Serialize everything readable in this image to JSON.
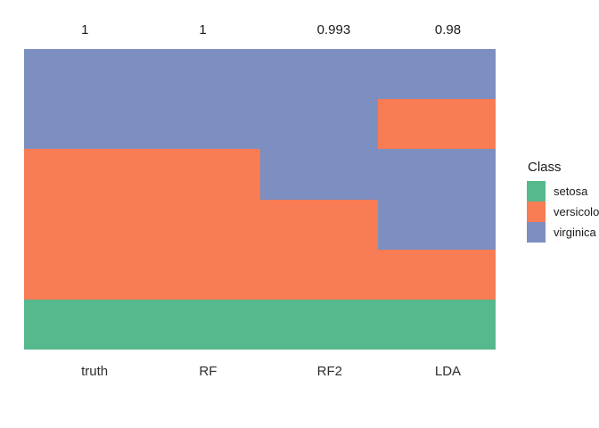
{
  "chart_data": {
    "type": "heatmap",
    "title": "",
    "description": "Predicted class per sample block (6 equal vertical blocks, top to bottom) for ground truth and three classifiers on the iris classes",
    "top_labels": [
      "1",
      "1",
      "0.993",
      "0.98"
    ],
    "x_tick_labels": [
      "truth",
      "RF",
      "RF2",
      "LDA"
    ],
    "columns": [
      {
        "name": "truth",
        "score_label": "1",
        "blocks_top_to_bottom": [
          "virginica",
          "virginica",
          "versicolor",
          "versicolor",
          "versicolor",
          "setosa"
        ]
      },
      {
        "name": "RF",
        "score_label": "1",
        "blocks_top_to_bottom": [
          "virginica",
          "virginica",
          "versicolor",
          "versicolor",
          "versicolor",
          "setosa"
        ]
      },
      {
        "name": "RF2",
        "score_label": "0.993",
        "blocks_top_to_bottom": [
          "virginica",
          "virginica",
          "virginica",
          "versicolor",
          "versicolor",
          "setosa"
        ]
      },
      {
        "name": "LDA",
        "score_label": "0.98",
        "blocks_top_to_bottom": [
          "virginica",
          "versicolor",
          "virginica",
          "virginica",
          "versicolor",
          "setosa"
        ]
      }
    ],
    "block_height_fraction": 0.1667,
    "class_colors": {
      "setosa": "#56B88D",
      "versicolor": "#F87C54",
      "virginica": "#7D8EC1"
    },
    "legend": {
      "title": "Class",
      "position": "right",
      "entries": [
        {
          "label": "setosa",
          "color": "#56B88D"
        },
        {
          "label": "versicolor",
          "color": "#F87C54"
        },
        {
          "label": "virginica",
          "color": "#7D8EC1"
        }
      ]
    },
    "layout": {
      "grid": false,
      "axis_lines": false,
      "ticks": false,
      "background": "#FFFFFF",
      "text_alignment": "left-aligned at column centers"
    }
  }
}
